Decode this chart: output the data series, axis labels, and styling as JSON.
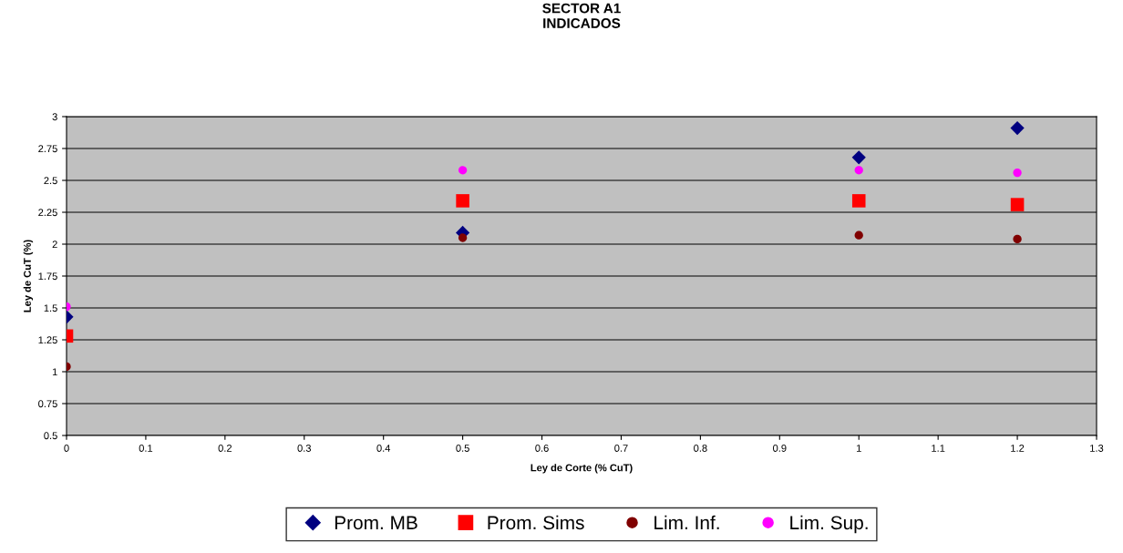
{
  "chart_data": {
    "type": "scatter",
    "title": "SECTOR A1\nINDICADOS",
    "xlabel": "Ley de Corte (% CuT)",
    "ylabel": "Ley de CuT (%)",
    "x": [
      0,
      0.5,
      1,
      1.2
    ],
    "series": [
      {
        "name": "Prom. MB",
        "color": "#000080",
        "marker": "diamond",
        "values": [
          1.43,
          2.09,
          2.68,
          2.91
        ]
      },
      {
        "name": "Prom. Sims",
        "color": "#ff0000",
        "marker": "square",
        "values": [
          1.28,
          2.34,
          2.34,
          2.31
        ]
      },
      {
        "name": "Lim. Inf.",
        "color": "#800000",
        "marker": "circle",
        "values": [
          1.04,
          2.05,
          2.07,
          2.04
        ]
      },
      {
        "name": "Lim. Sup.",
        "color": "#ff00ff",
        "marker": "circle",
        "values": [
          1.51,
          2.58,
          2.58,
          2.56
        ]
      }
    ],
    "xlim": [
      0,
      1.3
    ],
    "xticks": [
      0,
      0.1,
      0.2,
      0.3,
      0.4,
      0.5,
      0.6,
      0.7,
      0.8,
      0.9,
      1,
      1.1,
      1.2,
      1.3
    ],
    "ylim": [
      0.5,
      3
    ],
    "yticks": [
      0.5,
      0.75,
      1,
      1.25,
      1.5,
      1.75,
      2,
      2.25,
      2.5,
      2.75,
      3
    ],
    "grid": "y",
    "legend": "bottom"
  }
}
